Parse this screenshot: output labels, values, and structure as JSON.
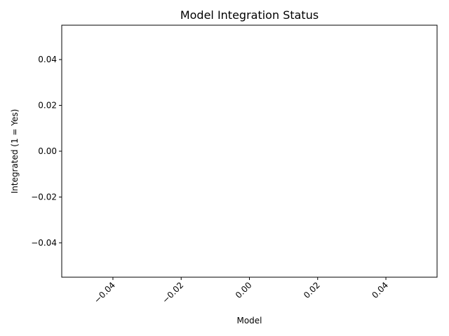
{
  "chart_data": {
    "type": "bar",
    "title": "Model Integration Status",
    "xlabel": "Model",
    "ylabel": "Integrated (1 = Yes)",
    "categories": [],
    "values": [],
    "xlim": [
      -0.055,
      0.055
    ],
    "ylim": [
      -0.055,
      0.055
    ],
    "xticks": [
      "−0.04",
      "−0.02",
      "0.00",
      "0.02",
      "0.04"
    ],
    "xtick_values": [
      -0.04,
      -0.02,
      0.0,
      0.02,
      0.04
    ],
    "yticks": [
      "−0.04",
      "−0.02",
      "0.00",
      "0.02",
      "0.04"
    ],
    "ytick_values": [
      -0.04,
      -0.02,
      0.0,
      0.02,
      0.04
    ],
    "xtick_rotation_deg": 45,
    "grid": false,
    "legend": "none"
  }
}
